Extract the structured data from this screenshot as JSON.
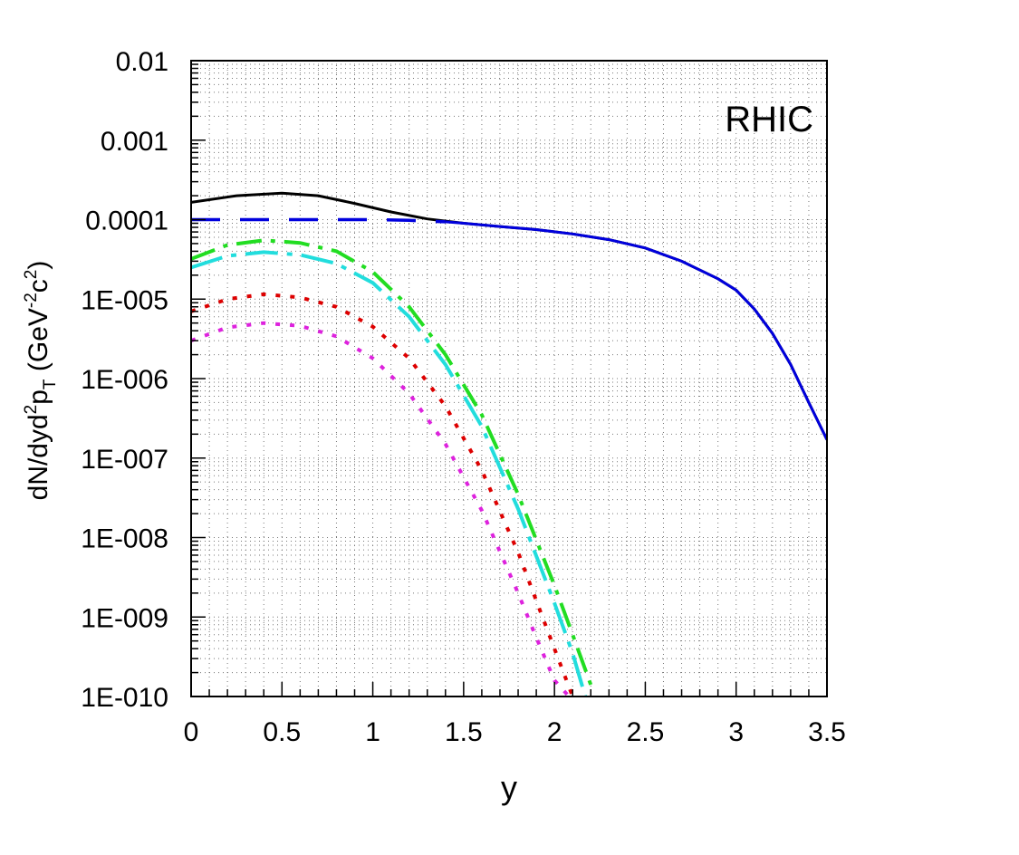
{
  "chart_data": {
    "type": "line",
    "title": "",
    "annotation": "RHIC",
    "xlabel": "y",
    "ylabel_parts": {
      "a": "dN/dyd",
      "b": "2",
      "c": "p",
      "d": "T",
      "e": " (GeV",
      "f": "-2",
      "g": "c",
      "h": "2",
      "i": ")"
    },
    "xlim": [
      0,
      3.5
    ],
    "ylim": [
      1e-10,
      0.01
    ],
    "yscale": "log",
    "grid": true,
    "x_ticks": [
      {
        "value": 0,
        "label": "0"
      },
      {
        "value": 0.5,
        "label": "0.5"
      },
      {
        "value": 1,
        "label": "1"
      },
      {
        "value": 1.5,
        "label": "1.5"
      },
      {
        "value": 2,
        "label": "2"
      },
      {
        "value": 2.5,
        "label": "2.5"
      },
      {
        "value": 3,
        "label": "3"
      },
      {
        "value": 3.5,
        "label": "3.5"
      }
    ],
    "y_ticks": [
      {
        "value": 0.01,
        "label": "0.01"
      },
      {
        "value": 0.001,
        "label": "0.001"
      },
      {
        "value": 0.0001,
        "label": "0.0001"
      },
      {
        "value": 1e-05,
        "label": "1E-005"
      },
      {
        "value": 1e-06,
        "label": "1E-006"
      },
      {
        "value": 1e-07,
        "label": "1E-007"
      },
      {
        "value": 1e-08,
        "label": "1E-008"
      },
      {
        "value": 1e-09,
        "label": "1E-009"
      },
      {
        "value": 1e-10,
        "label": "1E-010"
      }
    ],
    "series": [
      {
        "color": "#000000",
        "style": "solid",
        "x": [
          0,
          0.25,
          0.5,
          0.7,
          0.9,
          1.1,
          1.3,
          1.5,
          1.7,
          1.9,
          2.1,
          2.3,
          2.5,
          2.7,
          2.9,
          3.0,
          3.1,
          3.2,
          3.3,
          3.4,
          3.5
        ],
        "y": [
          0.000165,
          0.0002,
          0.000215,
          0.0002,
          0.00016,
          0.000125,
          0.000102,
          9e-05,
          8.2e-05,
          7.5e-05,
          6.6e-05,
          5.6e-05,
          4.4e-05,
          3e-05,
          1.8e-05,
          1.3e-05,
          7.5e-06,
          3.7e-06,
          1.5e-06,
          5e-07,
          1.7e-07
        ]
      },
      {
        "color": "#0000dd",
        "style": "dashed-then-solid",
        "x": [
          0,
          0.25,
          0.5,
          0.75,
          1.0,
          1.2,
          1.4,
          1.5,
          1.7,
          1.9,
          2.1,
          2.3,
          2.5,
          2.7,
          2.9,
          3.0,
          3.1,
          3.2,
          3.3,
          3.4,
          3.5
        ],
        "y": [
          0.0001,
          0.0001,
          0.0001,
          0.0001,
          0.0001,
          9.8e-05,
          9.4e-05,
          9e-05,
          8.2e-05,
          7.5e-05,
          6.6e-05,
          5.6e-05,
          4.4e-05,
          3e-05,
          1.8e-05,
          1.3e-05,
          7.5e-06,
          3.7e-06,
          1.5e-06,
          5e-07,
          1.7e-07
        ]
      },
      {
        "color": "#22dd22",
        "style": "dash-dot",
        "x": [
          0,
          0.2,
          0.4,
          0.6,
          0.8,
          1.0,
          1.2,
          1.4,
          1.6,
          1.8,
          2.0,
          2.1,
          2.2
        ],
        "y": [
          3.2e-05,
          4.8e-05,
          5.5e-05,
          5.1e-05,
          4e-05,
          2.2e-05,
          8e-06,
          2e-06,
          3.5e-07,
          3.5e-08,
          2.5e-09,
          6e-10,
          1.4e-10
        ]
      },
      {
        "color": "#22dddd",
        "style": "long-dash-dot",
        "x": [
          0,
          0.2,
          0.4,
          0.6,
          0.8,
          1.0,
          1.2,
          1.4,
          1.6,
          1.8,
          2.0,
          2.1,
          2.17
        ],
        "y": [
          2.5e-05,
          3.5e-05,
          3.9e-05,
          3.6e-05,
          2.8e-05,
          1.6e-05,
          6e-06,
          1.5e-06,
          2.5e-07,
          2.3e-08,
          1.5e-09,
          3.5e-10,
          1e-10
        ]
      },
      {
        "color": "#dd0000",
        "style": "dotted",
        "x": [
          0,
          0.2,
          0.4,
          0.6,
          0.8,
          1.0,
          1.2,
          1.4,
          1.6,
          1.8,
          2.0,
          2.1
        ],
        "y": [
          7e-06,
          1e-05,
          1.15e-05,
          1.05e-05,
          8e-06,
          4.5e-06,
          1.8e-06,
          4.5e-07,
          7e-08,
          6.5e-09,
          4e-10,
          1e-10
        ]
      },
      {
        "color": "#dd22dd",
        "style": "dotted",
        "x": [
          0,
          0.2,
          0.4,
          0.6,
          0.8,
          1.0,
          1.2,
          1.4,
          1.6,
          1.8,
          1.9,
          2.0,
          2.08
        ],
        "y": [
          3e-06,
          4.4e-06,
          5e-06,
          4.6e-06,
          3.4e-06,
          1.8e-06,
          6.5e-07,
          1.5e-07,
          2.2e-08,
          2e-09,
          5.5e-10,
          1.6e-10,
          1e-10
        ]
      }
    ]
  }
}
